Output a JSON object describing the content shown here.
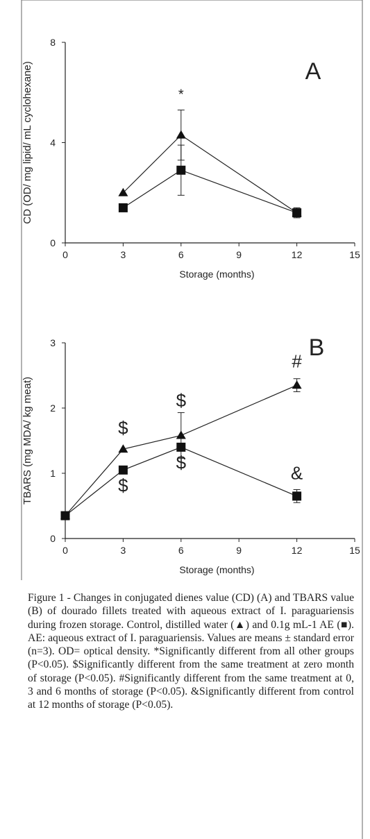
{
  "chart_data": [
    {
      "type": "line",
      "panel_label": "A",
      "xlabel": "Storage (months)",
      "ylabel": "CD (OD/ mg lipid/ mL cyclohexane)",
      "xlim": [
        0,
        15
      ],
      "ylim": [
        0,
        8
      ],
      "xticks": [
        "0",
        "3",
        "6",
        "9",
        "12",
        "15"
      ],
      "yticks": [
        "0",
        "4",
        "8"
      ],
      "xtick_values": [
        0,
        3,
        6,
        9,
        12,
        15
      ],
      "ytick_values": [
        0,
        4,
        8
      ],
      "series": [
        {
          "marker": "triangle",
          "x": [
            3,
            6,
            12
          ],
          "y": [
            2.0,
            4.3,
            1.2
          ],
          "err": [
            0,
            1.0,
            0.15
          ]
        },
        {
          "marker": "square",
          "x": [
            3,
            6,
            12
          ],
          "y": [
            1.4,
            2.9,
            1.2
          ],
          "err": [
            0,
            1.0,
            0.2
          ]
        }
      ],
      "annotations": [
        {
          "text": "*",
          "x": 6,
          "y": 5.75
        }
      ]
    },
    {
      "type": "line",
      "panel_label": "B",
      "xlabel": "Storage (months)",
      "ylabel": "TBARS (mg MDA/ kg meat)",
      "xlim": [
        0,
        15
      ],
      "ylim": [
        0,
        3
      ],
      "xticks": [
        "0",
        "3",
        "6",
        "9",
        "12",
        "15"
      ],
      "yticks": [
        "0",
        "1",
        "2",
        "3"
      ],
      "xtick_values": [
        0,
        3,
        6,
        9,
        12,
        15
      ],
      "ytick_values": [
        0,
        1,
        2,
        3
      ],
      "series": [
        {
          "marker": "triangle",
          "x": [
            0,
            3,
            6,
            12
          ],
          "y": [
            0.35,
            1.37,
            1.58,
            2.35
          ],
          "err": [
            0,
            0,
            0.35,
            0.1
          ]
        },
        {
          "marker": "square",
          "x": [
            0,
            3,
            6,
            12
          ],
          "y": [
            0.35,
            1.05,
            1.4,
            0.65
          ],
          "err": [
            0,
            0,
            0,
            0.1
          ]
        }
      ],
      "annotations": [
        {
          "text": "$",
          "x": 3,
          "y": 1.6
        },
        {
          "text": "$",
          "x": 6,
          "y": 2.02
        },
        {
          "text": "#",
          "x": 12,
          "y": 2.62
        },
        {
          "text": "$",
          "x": 3,
          "y": 0.72
        },
        {
          "text": "$",
          "x": 6,
          "y": 1.07
        },
        {
          "text": "&",
          "x": 12,
          "y": 0.91
        }
      ]
    }
  ],
  "caption": {
    "label": "Figure 1 - ",
    "body": "Changes in conjugated dienes value (CD) (A) and TBARS value (B) of dourado fillets treated with aqueous extract of I. paraguariensis during frozen storage. Control, distilled water (▲) and 0.1g mL-1 AE (■). AE: aqueous extract of I. paraguariensis. Values are means ± standard error (n=3). OD= optical density. *Significantly different from all other groups (P<0.05). $Significantly different from the same treatment at zero month of storage (P<0.05). #Significantly different from the same treatment at 0, 3 and 6 months of storage (P<0.05). &Significantly different from control at 12 months of storage (P<0.05)."
  }
}
